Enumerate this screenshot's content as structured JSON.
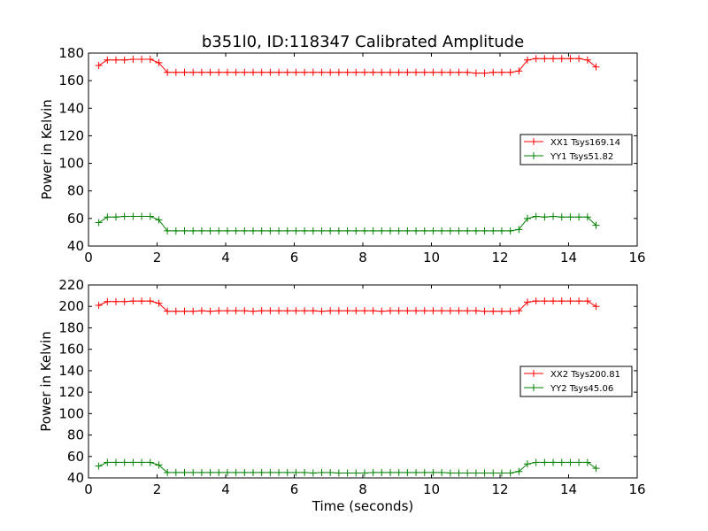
{
  "chart_data": [
    {
      "type": "line",
      "title": "b351l0, ID:118347 Calibrated Amplitude",
      "xlabel": "",
      "ylabel": "Power in Kelvin",
      "xlim": [
        0,
        16
      ],
      "ylim": [
        40,
        180
      ],
      "xticks": [
        0,
        2,
        4,
        6,
        8,
        10,
        12,
        14,
        16
      ],
      "yticks": [
        40,
        60,
        80,
        100,
        120,
        140,
        160,
        180
      ],
      "grid": false,
      "legend_position": "center-right",
      "x": [
        0.3,
        0.55,
        0.8,
        1.05,
        1.3,
        1.55,
        1.8,
        2.05,
        2.3,
        2.55,
        2.8,
        3.05,
        3.3,
        3.55,
        3.8,
        4.05,
        4.3,
        4.55,
        4.8,
        5.05,
        5.3,
        5.55,
        5.8,
        6.05,
        6.3,
        6.55,
        6.8,
        7.05,
        7.3,
        7.55,
        7.8,
        8.05,
        8.3,
        8.55,
        8.8,
        9.05,
        9.3,
        9.55,
        9.8,
        10.05,
        10.3,
        10.55,
        10.8,
        11.05,
        11.3,
        11.55,
        11.8,
        12.05,
        12.3,
        12.55,
        12.8,
        13.05,
        13.3,
        13.55,
        13.8,
        14.05,
        14.3,
        14.55,
        14.8
      ],
      "series": [
        {
          "name": "XX1 Tsys169.14",
          "color": "#ff0000",
          "values": [
            171,
            175,
            175,
            175,
            175.5,
            175.5,
            175.5,
            173,
            166,
            166,
            166,
            166,
            166,
            166,
            166,
            166,
            166,
            166,
            166,
            166,
            166,
            166,
            166,
            166,
            166,
            166,
            166,
            166,
            166,
            166,
            166,
            166,
            166,
            166,
            166,
            166,
            166,
            166,
            166,
            166,
            166,
            166,
            166,
            166,
            165.5,
            165.5,
            166,
            166,
            166,
            167,
            175,
            176,
            176,
            176,
            176,
            176,
            176,
            175,
            170
          ]
        },
        {
          "name": "YY1 Tsys51.82",
          "color": "#008000",
          "values": [
            57,
            61,
            61,
            61.5,
            61.5,
            61.5,
            61.5,
            59,
            51,
            51,
            51,
            51,
            51,
            51,
            51,
            51,
            51,
            51,
            51,
            51,
            51,
            51,
            51,
            51,
            51,
            51,
            51,
            51,
            51,
            51,
            51,
            51,
            51,
            51,
            51,
            51,
            51,
            51,
            51,
            51,
            51,
            51,
            51,
            51,
            51,
            51,
            51,
            51,
            51,
            52,
            60,
            61.5,
            61,
            61.5,
            61,
            61,
            61,
            61,
            55
          ]
        }
      ]
    },
    {
      "type": "line",
      "title": "",
      "xlabel": "Time (seconds)",
      "ylabel": "Power in Kelvin",
      "xlim": [
        0,
        16
      ],
      "ylim": [
        40,
        220
      ],
      "xticks": [
        0,
        2,
        4,
        6,
        8,
        10,
        12,
        14,
        16
      ],
      "yticks": [
        40,
        60,
        80,
        100,
        120,
        140,
        160,
        180,
        200,
        220
      ],
      "grid": false,
      "legend_position": "center-right",
      "x": [
        0.3,
        0.55,
        0.8,
        1.05,
        1.3,
        1.55,
        1.8,
        2.05,
        2.3,
        2.55,
        2.8,
        3.05,
        3.3,
        3.55,
        3.8,
        4.05,
        4.3,
        4.55,
        4.8,
        5.05,
        5.3,
        5.55,
        5.8,
        6.05,
        6.3,
        6.55,
        6.8,
        7.05,
        7.3,
        7.55,
        7.8,
        8.05,
        8.3,
        8.55,
        8.8,
        9.05,
        9.3,
        9.55,
        9.8,
        10.05,
        10.3,
        10.55,
        10.8,
        11.05,
        11.3,
        11.55,
        11.8,
        12.05,
        12.3,
        12.55,
        12.8,
        13.05,
        13.3,
        13.55,
        13.8,
        14.05,
        14.3,
        14.55,
        14.8
      ],
      "series": [
        {
          "name": "XX2 Tsys200.81",
          "color": "#ff0000",
          "values": [
            201,
            204.5,
            204.5,
            204.5,
            205,
            205,
            205,
            203,
            195.5,
            195.5,
            195.5,
            195.5,
            196,
            195.5,
            196,
            196,
            196,
            196,
            195.5,
            196,
            196,
            196,
            196,
            196,
            196,
            196,
            195.5,
            196,
            196,
            196,
            196,
            196,
            196,
            195.5,
            196,
            196,
            196,
            196,
            196,
            196,
            196,
            196,
            196,
            196,
            196,
            195.5,
            195.5,
            195.5,
            195.5,
            196,
            204,
            205,
            205,
            205,
            205,
            205,
            205,
            205,
            200
          ]
        },
        {
          "name": "YY2 Tsys45.06",
          "color": "#008000",
          "values": [
            51,
            54.5,
            54.5,
            54.5,
            54.5,
            54.5,
            54.5,
            52,
            45,
            45,
            45,
            45,
            45,
            45,
            45,
            45,
            45,
            45,
            45,
            45,
            45,
            45,
            45,
            45,
            45,
            44.5,
            45,
            45,
            44.5,
            44.5,
            44.5,
            44.5,
            45,
            45,
            45,
            45,
            45,
            45,
            45,
            45,
            45,
            44.5,
            44.5,
            44.5,
            44.5,
            44.5,
            44.5,
            44.5,
            44.5,
            46,
            53,
            54.5,
            54.5,
            54.5,
            54.5,
            54.5,
            54.5,
            54.5,
            49
          ]
        }
      ]
    }
  ]
}
